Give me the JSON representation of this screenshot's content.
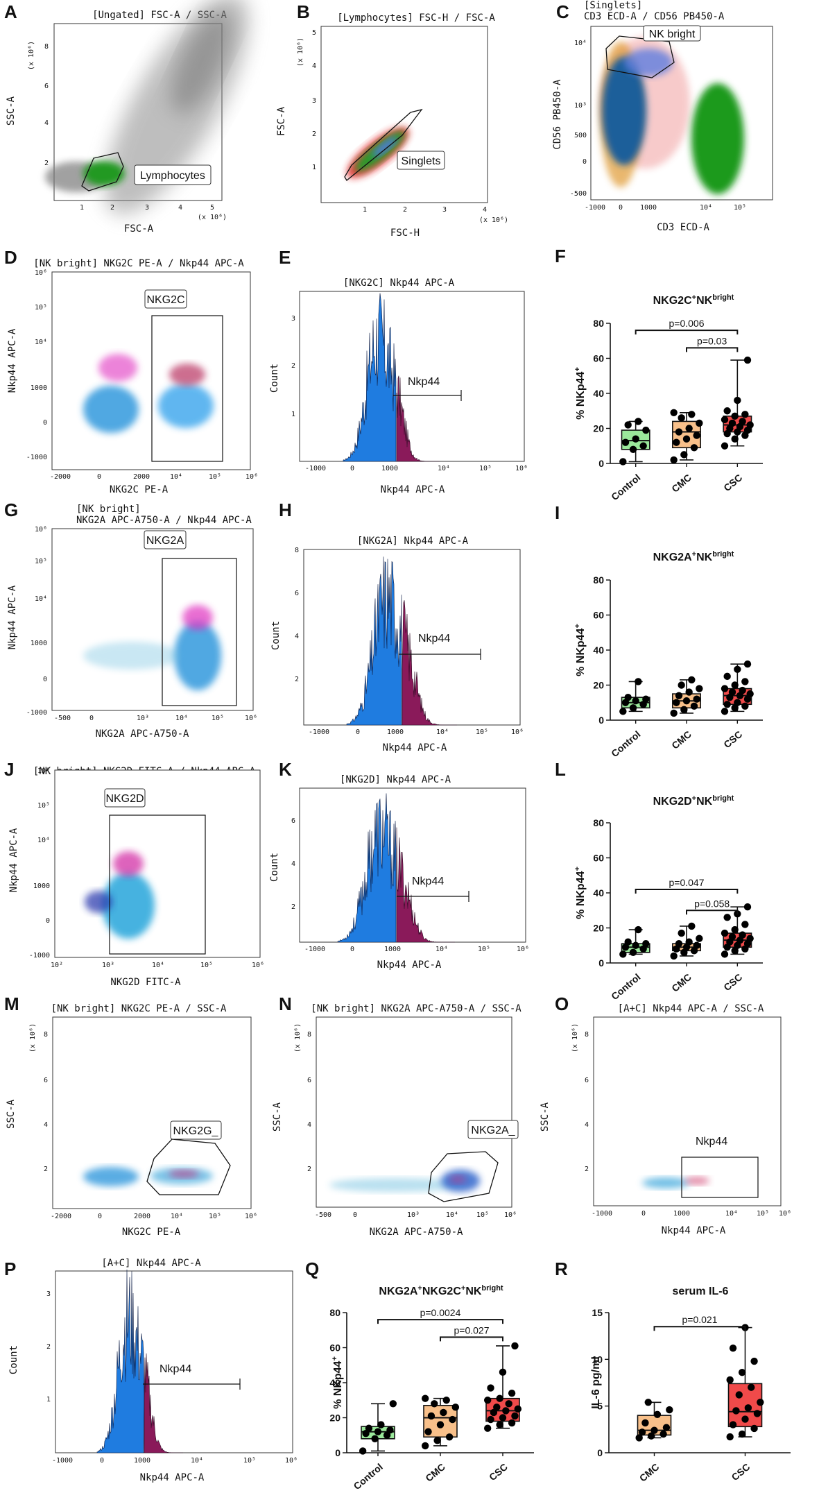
{
  "panels": {
    "A": {
      "letter": "A",
      "title": "[Ungated] FSC-A / SSC-A",
      "xlabel": "FSC-A",
      "ylabel": "SSC-A",
      "xmult": "(x 10⁶)",
      "ymult": "(x 10⁶)",
      "gate": "Lymphocytes",
      "xticks": [
        "1",
        "2",
        "3",
        "4",
        "5"
      ],
      "yticks": [
        "2",
        "4",
        "6",
        "8"
      ]
    },
    "B": {
      "letter": "B",
      "title": "[Lymphocytes] FSC-H / FSC-A",
      "xlabel": "FSC-H",
      "ylabel": "FSC-A",
      "xmult": "(x 10⁶)",
      "ymult": "(x 10⁶)",
      "gate": "Singlets",
      "xticks": [
        "1",
        "2",
        "3",
        "4"
      ],
      "yticks": [
        "1",
        "2",
        "3",
        "4",
        "5"
      ]
    },
    "C": {
      "letter": "C",
      "title1": "[Singlets]",
      "title2": "CD3 ECD-A / CD56 PB450-A",
      "xlabel": "CD3 ECD-A",
      "ylabel": "CD56 PB450-A",
      "gate": "NK bright",
      "xticks": [
        "-1000",
        "0",
        "1000",
        "10⁴",
        "10⁵"
      ],
      "yticks": [
        "10⁴",
        "10³",
        "500",
        "0",
        "-500"
      ]
    },
    "D": {
      "letter": "D",
      "title": "[NK bright] NKG2C PE-A / Nkp44 APC-A",
      "xlabel": "NKG2C PE-A",
      "ylabel": "Nkp44 APC-A",
      "gate": "NKG2C",
      "xticks": [
        "-2000",
        "0",
        "2000",
        "10⁴",
        "10⁵",
        "10⁶"
      ],
      "yticks": [
        "10⁶",
        "10⁵",
        "10⁴",
        "1000",
        "0",
        "-1000"
      ]
    },
    "E": {
      "letter": "E",
      "title": "[NKG2C] Nkp44 APC-A",
      "xlabel": "Nkp44 APC-A",
      "ylabel": "Count",
      "gate": "Nkp44",
      "xticks": [
        "-1000",
        "0",
        "1000",
        "10⁴",
        "10⁵",
        "10⁶"
      ],
      "yticks": [
        "3",
        "2",
        "1"
      ]
    },
    "G": {
      "letter": "G",
      "title1": "[NK bright]",
      "title2": "NKG2A APC-A750-A / Nkp44 APC-A",
      "xlabel": "NKG2A APC-A750-A",
      "ylabel": "Nkp44 APC-A",
      "gate": "NKG2A",
      "xticks": [
        "-500",
        "0",
        "10³",
        "10⁴",
        "10⁵",
        "10⁶"
      ],
      "yticks": [
        "10⁶",
        "10⁵",
        "10⁴",
        "1000",
        "0",
        "-1000"
      ]
    },
    "H": {
      "letter": "H",
      "title": "[NKG2A] Nkp44 APC-A",
      "xlabel": "Nkp44 APC-A",
      "ylabel": "Count",
      "gate": "Nkp44",
      "xticks": [
        "-1000",
        "0",
        "1000",
        "10⁴",
        "10⁵",
        "10⁶"
      ],
      "yticks": [
        "8",
        "6",
        "4",
        "2"
      ]
    },
    "J": {
      "letter": "J",
      "title": "[NK bright] NKG2D FITC-A / Nkp44 APC-A",
      "xlabel": "NKG2D FITC-A",
      "ylabel": "Nkp44 APC-A",
      "gate": "NKG2D",
      "xticks": [
        "10²",
        "10³",
        "10⁴",
        "10⁵",
        "10⁶"
      ],
      "yticks": [
        "10⁶",
        "10⁵",
        "10⁴",
        "1000",
        "0",
        "-1000"
      ]
    },
    "K": {
      "letter": "K",
      "title": "[NKG2D] Nkp44 APC-A",
      "xlabel": "Nkp44 APC-A",
      "ylabel": "Count",
      "gate": "Nkp44",
      "xticks": [
        "-1000",
        "0",
        "1000",
        "10⁴",
        "10⁵",
        "10⁶"
      ],
      "yticks": [
        "6",
        "4",
        "2"
      ]
    },
    "M": {
      "letter": "M",
      "title": "[NK bright] NKG2C PE-A / SSC-A",
      "xlabel": "NKG2C PE-A",
      "ylabel": "SSC-A",
      "ymult": "(x 10⁶)",
      "gate": "NKG2G_",
      "xticks": [
        "-2000",
        "0",
        "2000",
        "10⁴",
        "10⁵",
        "10⁶"
      ],
      "yticks": [
        "8",
        "6",
        "4",
        "2"
      ]
    },
    "N": {
      "letter": "N",
      "title": "[NK bright] NKG2A APC-A750-A / SSC-A",
      "xlabel": "NKG2A APC-A750-A",
      "ylabel": "SSC-A",
      "ymult": "(x 10⁶)",
      "gate": "NKG2A_",
      "xticks": [
        "-500",
        "0",
        "10³",
        "10⁴",
        "10⁵",
        "10⁶"
      ],
      "yticks": [
        "8",
        "6",
        "4",
        "2"
      ]
    },
    "O": {
      "letter": "O",
      "title": "[A+C] Nkp44 APC-A / SSC-A",
      "xlabel": "Nkp44 APC-A",
      "ylabel": "SSC-A",
      "ymult": "(x 10⁶)",
      "gate": "Nkp44",
      "xticks": [
        "-1000",
        "0",
        "1000",
        "10⁴",
        "10⁵",
        "10⁶"
      ],
      "yticks": [
        "8",
        "6",
        "4",
        "2"
      ]
    },
    "P": {
      "letter": "P",
      "title": "[A+C] Nkp44 APC-A",
      "xlabel": "Nkp44 APC-A",
      "ylabel": "Count",
      "gate": "Nkp44",
      "xticks": [
        "-1000",
        "0",
        "1000",
        "10⁴",
        "10⁵",
        "10⁶"
      ],
      "yticks": [
        "3",
        "2",
        "1"
      ]
    }
  },
  "chart_data": [
    {
      "id": "F",
      "type": "box",
      "letter": "F",
      "title_main": "NKG2C",
      "title_sup1": "+",
      "title_mid": "NK",
      "title_sup2": "bright",
      "ylabel_main": "% NKp44",
      "ylabel_sup": "+",
      "ylim": [
        0,
        80
      ],
      "yticks": [
        0,
        20,
        40,
        60,
        80
      ],
      "categories": [
        "Control",
        "CMC",
        "CSC"
      ],
      "colors": [
        "#9be89b",
        "#f8c08a",
        "#f04a4a"
      ],
      "boxes": [
        {
          "min": 1,
          "q1": 8,
          "median": 13,
          "q3": 19,
          "max": 24
        },
        {
          "min": 2,
          "q1": 9,
          "median": 18,
          "q3": 24,
          "max": 29
        },
        {
          "min": 10,
          "q1": 18,
          "median": 22,
          "q3": 27,
          "max": 59
        }
      ],
      "points": [
        [
          1,
          8,
          10,
          12,
          14,
          19,
          22,
          24
        ],
        [
          2,
          5,
          9,
          12,
          14,
          16,
          18,
          20,
          23,
          26,
          28,
          29
        ],
        [
          10,
          14,
          16,
          17,
          18,
          19,
          20,
          21,
          22,
          23,
          24,
          25,
          27,
          28,
          30,
          36,
          59
        ]
      ],
      "brackets": [
        {
          "from": 0,
          "to": 2,
          "label": "p=0.006",
          "y": 76
        },
        {
          "from": 1,
          "to": 2,
          "label": "p=0.03",
          "y": 66
        }
      ]
    },
    {
      "id": "I",
      "type": "box",
      "letter": "I",
      "title_main": "NKG2A",
      "title_sup1": "+",
      "title_mid": "NK",
      "title_sup2": "bright",
      "ylabel_main": "% NKp44",
      "ylabel_sup": "+",
      "ylim": [
        0,
        80
      ],
      "yticks": [
        0,
        20,
        40,
        60,
        80
      ],
      "categories": [
        "Control",
        "CMC",
        "CSC"
      ],
      "colors": [
        "#9be89b",
        "#f8c08a",
        "#f04a4a"
      ],
      "boxes": [
        {
          "min": 5,
          "q1": 7,
          "median": 10,
          "q3": 13,
          "max": 22
        },
        {
          "min": 4,
          "q1": 7,
          "median": 11,
          "q3": 15,
          "max": 23
        },
        {
          "min": 5,
          "q1": 9,
          "median": 14,
          "q3": 18,
          "max": 32
        }
      ],
      "points": [
        [
          5,
          7,
          9,
          10,
          11,
          12,
          13,
          22
        ],
        [
          4,
          6,
          8,
          10,
          11,
          12,
          14,
          16,
          18,
          20,
          23
        ],
        [
          5,
          7,
          8,
          9,
          10,
          12,
          13,
          14,
          15,
          16,
          17,
          18,
          20,
          22,
          25,
          29,
          32
        ]
      ],
      "brackets": []
    },
    {
      "id": "L",
      "type": "box",
      "letter": "L",
      "title_main": "NKG2D",
      "title_sup1": "+",
      "title_mid": "NK",
      "title_sup2": "bright",
      "ylabel_main": "% NKp44",
      "ylabel_sup": "+",
      "ylim": [
        0,
        80
      ],
      "yticks": [
        0,
        20,
        40,
        60,
        80
      ],
      "categories": [
        "Control",
        "CMC",
        "CSC"
      ],
      "colors": [
        "#9be89b",
        "#f8c08a",
        "#f04a4a"
      ],
      "boxes": [
        {
          "min": 5,
          "q1": 6,
          "median": 9,
          "q3": 11,
          "max": 19
        },
        {
          "min": 4,
          "q1": 7,
          "median": 9,
          "q3": 11,
          "max": 21
        },
        {
          "min": 5,
          "q1": 9,
          "median": 13,
          "q3": 17,
          "max": 32
        }
      ],
      "points": [
        [
          5,
          6,
          8,
          9,
          10,
          11,
          12,
          19
        ],
        [
          4,
          6,
          7,
          8,
          9,
          10,
          11,
          12,
          14,
          17,
          21
        ],
        [
          5,
          7,
          8,
          9,
          10,
          11,
          12,
          13,
          14,
          15,
          16,
          17,
          19,
          22,
          26,
          28,
          32
        ]
      ],
      "brackets": [
        {
          "from": 0,
          "to": 2,
          "label": "p=0.047",
          "y": 42
        },
        {
          "from": 1,
          "to": 2,
          "label": "p=0.058",
          "y": 30
        }
      ]
    },
    {
      "id": "Q",
      "type": "box",
      "letter": "Q",
      "title_main": "NKG2A",
      "title_sup1": "+",
      "title_mid": "NKG2C",
      "title_sup2": "+",
      "title_tail": "NK",
      "title_sup3": "bright",
      "ylabel_main": "% NKp44",
      "ylabel_sup": "+",
      "ylim": [
        0,
        80
      ],
      "yticks": [
        0,
        20,
        40,
        60,
        80
      ],
      "categories": [
        "Control",
        "CMC",
        "CSC"
      ],
      "colors": [
        "#9be89b",
        "#f8c08a",
        "#f04a4a"
      ],
      "boxes": [
        {
          "min": 1,
          "q1": 8,
          "median": 12,
          "q3": 15,
          "max": 28
        },
        {
          "min": 4,
          "q1": 9,
          "median": 20,
          "q3": 27,
          "max": 31
        },
        {
          "min": 14,
          "q1": 18,
          "median": 24,
          "q3": 31,
          "max": 61
        }
      ],
      "points": [
        [
          1,
          8,
          10,
          11,
          12,
          13,
          14,
          16,
          28
        ],
        [
          4,
          7,
          9,
          12,
          16,
          19,
          21,
          23,
          26,
          28,
          30,
          31
        ],
        [
          14,
          16,
          17,
          19,
          20,
          21,
          23,
          24,
          25,
          26,
          28,
          30,
          31,
          34,
          37,
          46,
          61
        ]
      ],
      "brackets": [
        {
          "from": 0,
          "to": 2,
          "label": "p=0.0024",
          "y": 76
        },
        {
          "from": 1,
          "to": 2,
          "label": "p=0.027",
          "y": 66
        }
      ]
    },
    {
      "id": "R",
      "type": "box",
      "letter": "R",
      "title_main": "serum IL-6",
      "title_sup1": "",
      "title_mid": "",
      "title_sup2": "",
      "ylabel_main": "IL-6 pg/ml",
      "ylabel_sup": "",
      "ylim": [
        0,
        15
      ],
      "yticks": [
        0,
        5,
        10,
        15
      ],
      "categories": [
        "CMC",
        "CSC"
      ],
      "colors": [
        "#f8c08a",
        "#f04a4a"
      ],
      "boxes": [
        {
          "min": 1.6,
          "q1": 1.9,
          "median": 2.4,
          "q3": 4.0,
          "max": 5.4
        },
        {
          "min": 1.7,
          "q1": 2.8,
          "median": 4.4,
          "q3": 7.4,
          "max": 13.4
        }
      ],
      "points": [
        [
          1.6,
          1.8,
          2.0,
          2.2,
          2.4,
          2.7,
          3.2,
          4.1,
          4.6,
          5.4
        ],
        [
          1.7,
          2.0,
          2.6,
          3.0,
          3.6,
          4.2,
          4.5,
          4.8,
          5.4,
          6.2,
          7.0,
          7.8,
          8.6,
          9.8,
          11.2,
          13.4
        ]
      ],
      "brackets": [
        {
          "from": 0,
          "to": 1,
          "label": "p=0.021",
          "y": 13.5
        }
      ]
    }
  ]
}
